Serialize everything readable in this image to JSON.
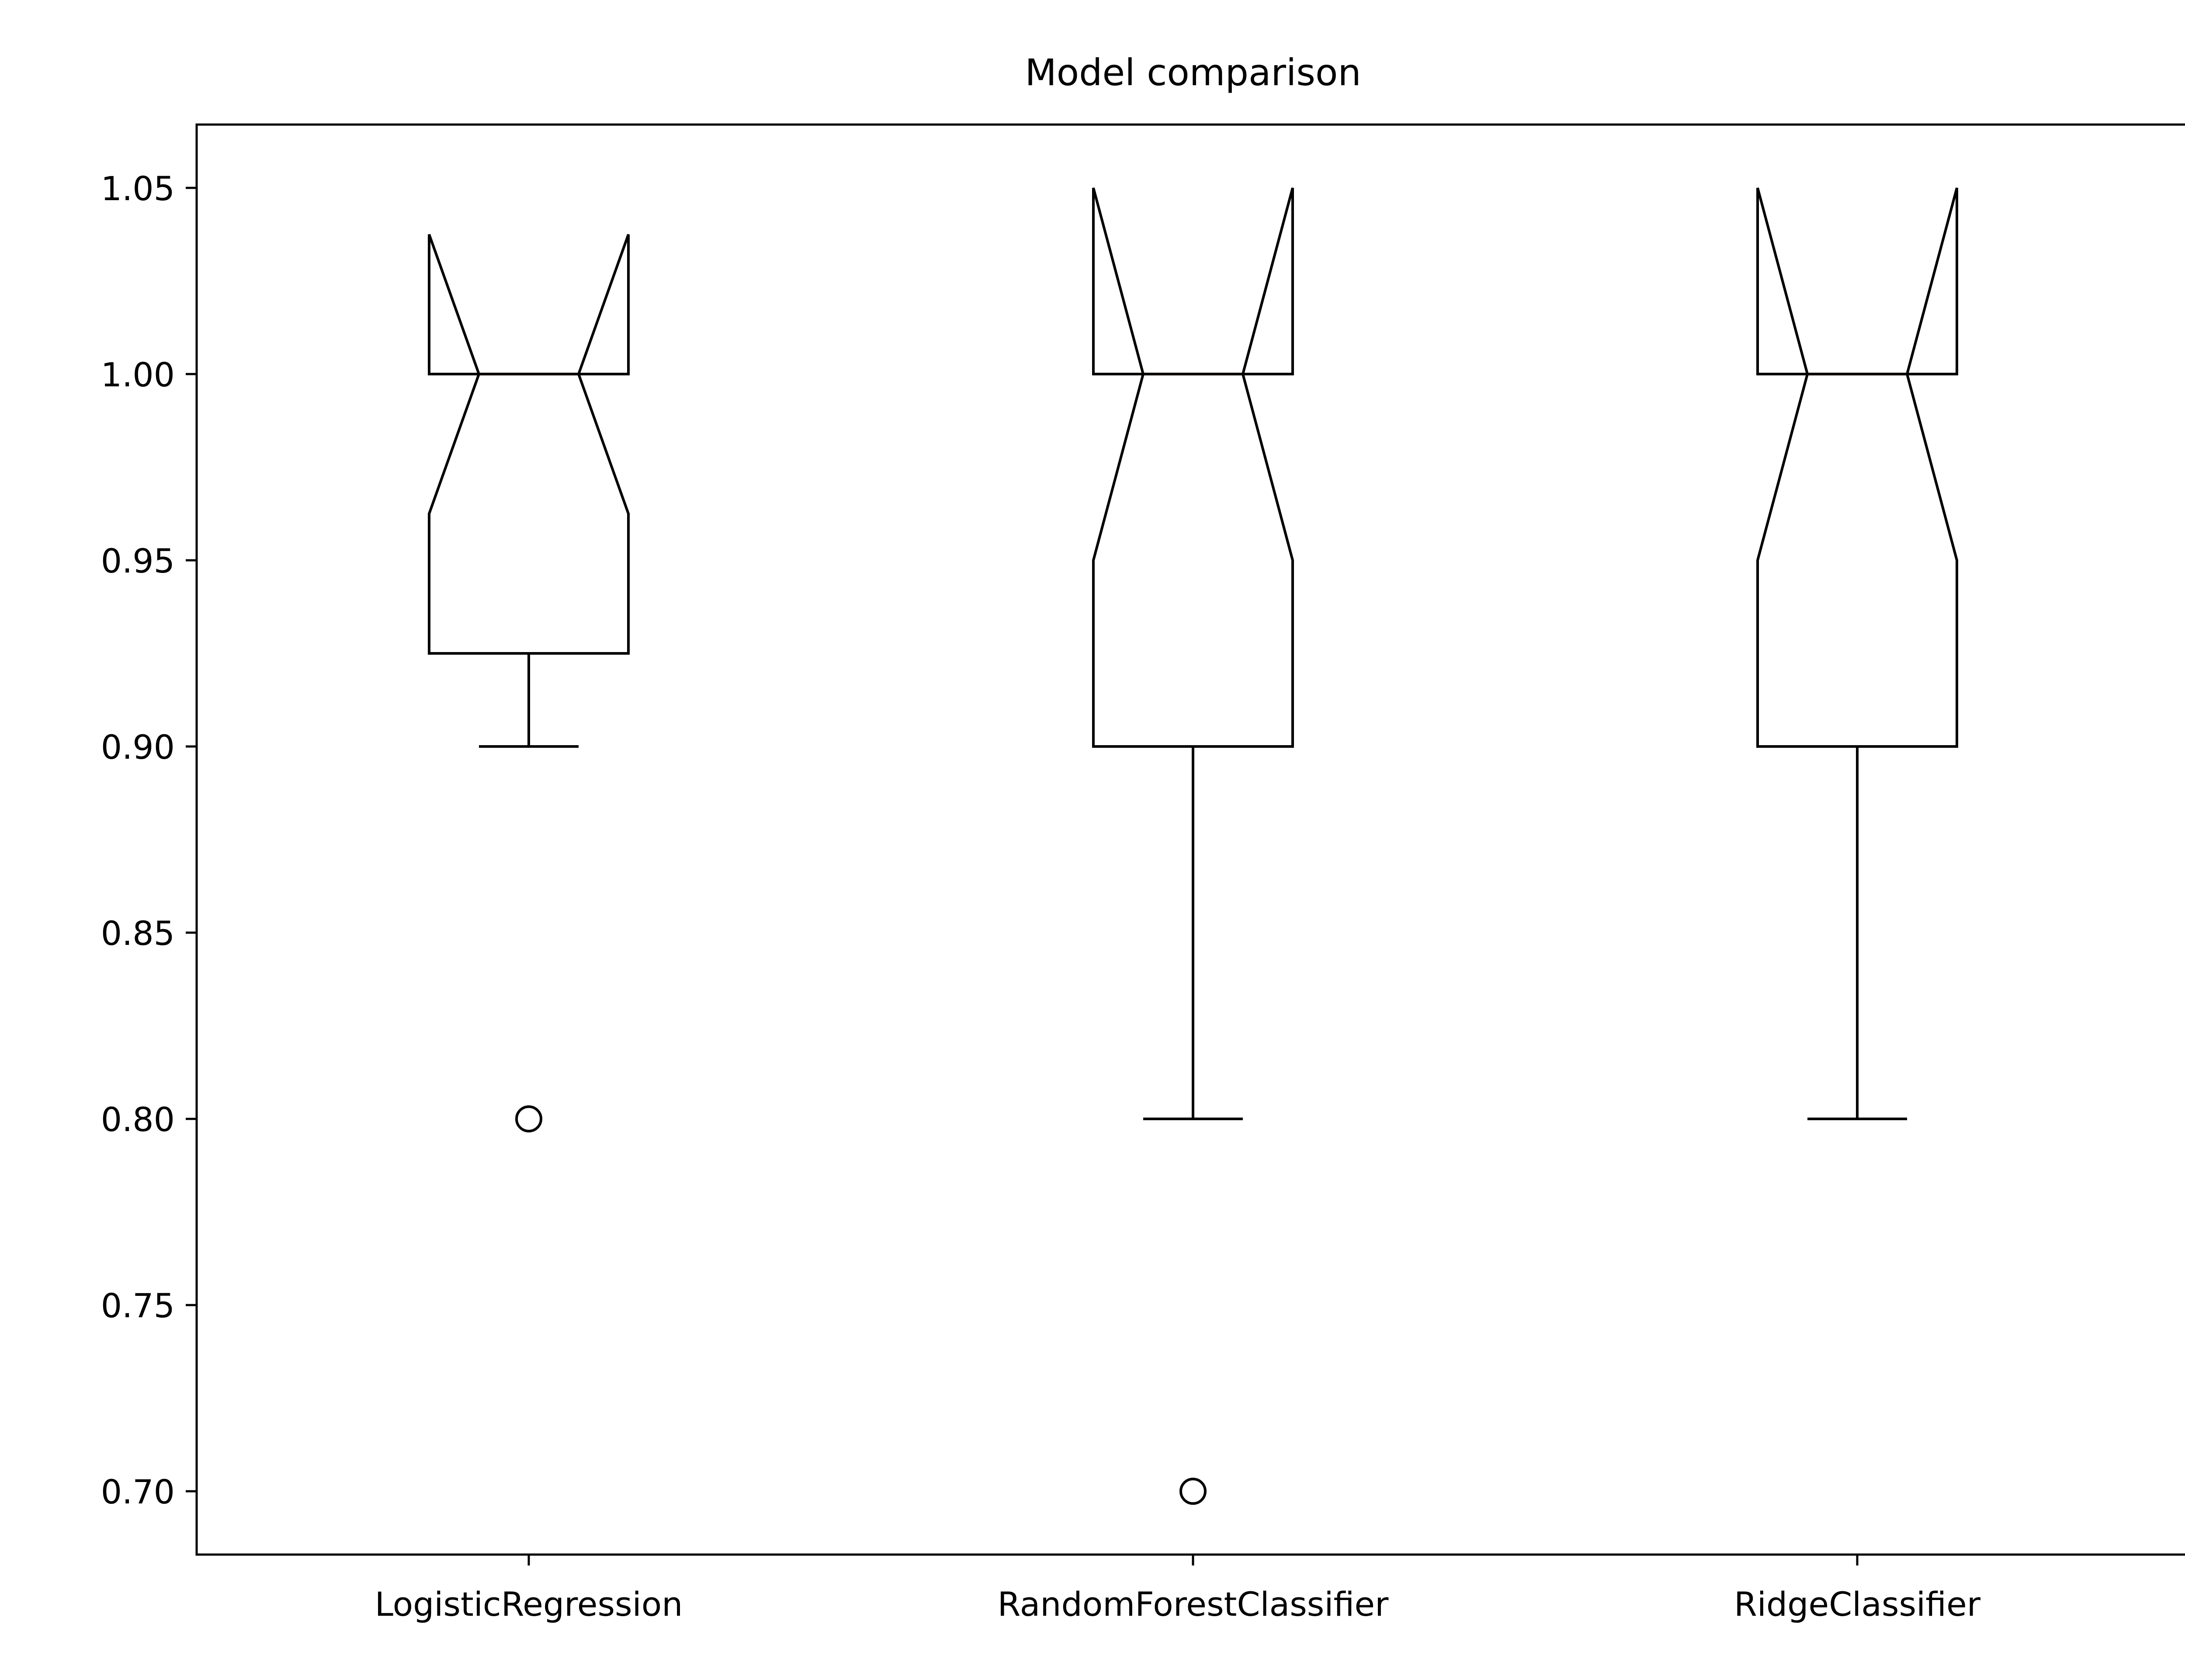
{
  "chart_data": {
    "type": "boxplot",
    "title": "Model comparison",
    "xlabel": "",
    "ylabel": "",
    "ylim": [
      0.683,
      1.067
    ],
    "yticks": [
      0.7,
      0.75,
      0.8,
      0.85,
      0.9,
      0.95,
      1.0,
      1.05
    ],
    "ytick_labels": [
      "0.70",
      "0.75",
      "0.80",
      "0.85",
      "0.90",
      "0.95",
      "1.00",
      "1.05"
    ],
    "notched": true,
    "grid": false,
    "legend": "none",
    "box_color": "#000000",
    "median_color": "#ff7f0e",
    "categories": [
      "LogisticRegression",
      "RandomForestClassifier",
      "RidgeClassifier"
    ],
    "boxes": [
      {
        "label": "LogisticRegression",
        "whisker_low": 0.9,
        "q1": 0.925,
        "median": 1.0,
        "q3": 1.0,
        "whisker_high": 1.0,
        "notch_low": 0.9625,
        "notch_high": 1.0375,
        "outliers": [
          0.8
        ]
      },
      {
        "label": "RandomForestClassifier",
        "whisker_low": 0.8,
        "q1": 0.9,
        "median": 1.0,
        "q3": 1.0,
        "whisker_high": 1.0,
        "notch_low": 0.95,
        "notch_high": 1.05,
        "outliers": [
          0.7
        ]
      },
      {
        "label": "RidgeClassifier",
        "whisker_low": 0.8,
        "q1": 0.9,
        "median": 1.0,
        "q3": 1.0,
        "whisker_high": 1.0,
        "notch_low": 0.95,
        "notch_high": 1.05,
        "outliers": []
      }
    ]
  }
}
